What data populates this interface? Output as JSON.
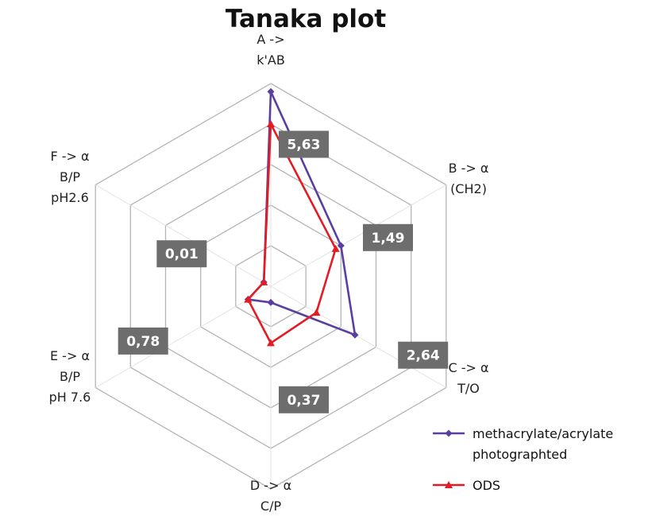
{
  "chart_data": {
    "type": "radar",
    "title": "Tanaka plot",
    "axes": [
      {
        "lines": [
          "A ->",
          "k'AB"
        ]
      },
      {
        "lines": [
          "B -> α",
          "(CH2)"
        ]
      },
      {
        "lines": [
          "C -> α",
          "T/O"
        ]
      },
      {
        "lines": [
          "D -> α",
          "C/P"
        ]
      },
      {
        "lines": [
          "E -> α",
          "B/P",
          "pH 7.6"
        ]
      },
      {
        "lines": [
          "F -> α",
          "B/P",
          "pH2.6"
        ]
      }
    ],
    "rings": 5,
    "rmax": 1.0,
    "grid": true,
    "legend_position": "bottom-right",
    "series": [
      {
        "name": "methacrylate/acrylate photographted",
        "legend_lines": [
          "methacrylate/acrylate",
          "photographted"
        ],
        "color": "#5b3fa0",
        "marker": "diamond",
        "values": [
          0.96,
          0.4,
          0.48,
          0.08,
          0.13,
          0.04
        ]
      },
      {
        "name": "ODS",
        "legend_lines": [
          "ODS"
        ],
        "color": "#e31b23",
        "marker": "triangle",
        "values": [
          0.8,
          0.37,
          0.26,
          0.28,
          0.13,
          0.04
        ]
      }
    ],
    "value_labels": [
      {
        "text": "5,63",
        "axis": 0,
        "r": 0.7,
        "side": "right"
      },
      {
        "text": "1,49",
        "axis": 1,
        "r": 0.48,
        "side": "right"
      },
      {
        "text": "2,64",
        "axis": 2,
        "r": 0.68,
        "side": "right"
      },
      {
        "text": "0,37",
        "axis": 3,
        "r": 0.56,
        "side": "right"
      },
      {
        "text": "0,78",
        "axis": 4,
        "r": 0.54,
        "side": "left"
      },
      {
        "text": "0,01",
        "axis": 5,
        "r": 0.32,
        "side": "left"
      }
    ]
  }
}
